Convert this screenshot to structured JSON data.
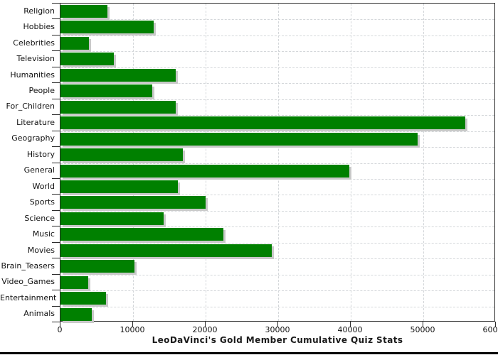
{
  "chart_data": {
    "type": "bar",
    "orientation": "horizontal",
    "title": "LeoDaVinci's Gold Member Cumulative Quiz Stats",
    "categories": [
      "Religion",
      "Hobbies",
      "Celebrities",
      "Television",
      "Humanities",
      "People",
      "For_Children",
      "Literature",
      "Geography",
      "History",
      "General",
      "World",
      "Sports",
      "Science",
      "Music",
      "Movies",
      "Brain_Teasers",
      "Video_Games",
      "Entertainment",
      "Animals"
    ],
    "values": [
      6500,
      12800,
      3900,
      7300,
      15900,
      12600,
      15900,
      55800,
      49200,
      16900,
      39800,
      16200,
      20000,
      14200,
      22400,
      29100,
      10200,
      3800,
      6300,
      4300
    ],
    "xlim": [
      0,
      60000
    ],
    "x_ticks": [
      0,
      10000,
      20000,
      30000,
      40000,
      50000,
      60000
    ],
    "x_tick_labels": [
      "0",
      "10000",
      "20000",
      "30000",
      "40000",
      "50000",
      "60000"
    ],
    "xlabel": "",
    "ylabel": "",
    "legend": "none",
    "grid": "dashed vertical at x ticks and horizontal at row boundaries",
    "colors": {
      "bar": "#008000",
      "bar_shadow": "#c9c9c9",
      "grid": "#d4d7da",
      "axis": "#2b2b2b",
      "text": "#111111",
      "background": "#ffffff",
      "bottom_edge": "#000000"
    }
  }
}
